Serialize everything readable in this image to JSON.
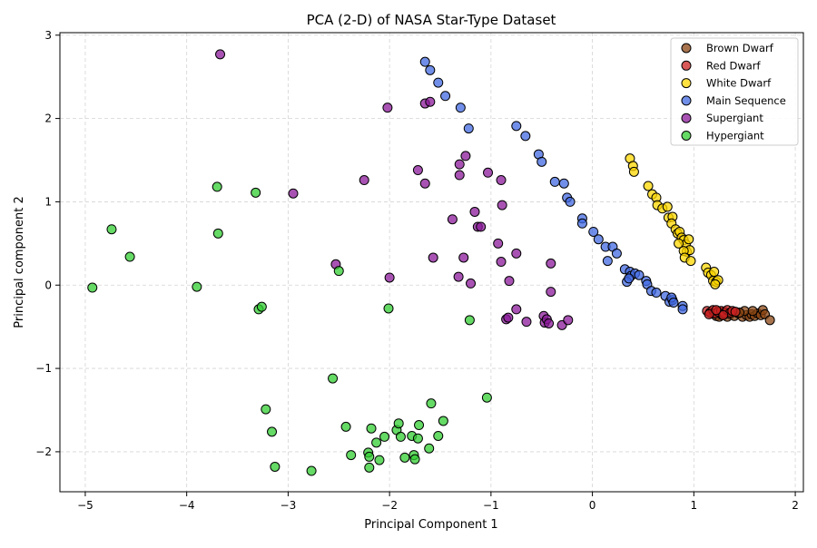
{
  "chart_data": {
    "type": "scatter",
    "title": "PCA (2-D) of NASA Star-Type Dataset",
    "xlabel": "Principal Component 1",
    "ylabel": "Principal component 2",
    "xlim": [
      -5.25,
      2.08
    ],
    "ylim": [
      -2.48,
      3.03
    ],
    "xticks": [
      -5,
      -4,
      -3,
      -2,
      -1,
      0,
      1,
      2
    ],
    "yticks": [
      -2,
      -1,
      0,
      1,
      2,
      3
    ],
    "grid": true,
    "legend_position": "top-right",
    "series": [
      {
        "name": "Brown Dwarf",
        "color": "#8B4513",
        "points": [
          [
            1.22,
            -0.37
          ],
          [
            1.25,
            -0.38
          ],
          [
            1.28,
            -0.36
          ],
          [
            1.33,
            -0.38
          ],
          [
            1.36,
            -0.35
          ],
          [
            1.4,
            -0.37
          ],
          [
            1.44,
            -0.34
          ],
          [
            1.48,
            -0.38
          ],
          [
            1.52,
            -0.36
          ],
          [
            1.55,
            -0.38
          ],
          [
            1.57,
            -0.35
          ],
          [
            1.6,
            -0.37
          ],
          [
            1.63,
            -0.34
          ],
          [
            1.66,
            -0.36
          ],
          [
            1.68,
            -0.3
          ],
          [
            1.7,
            -0.35
          ],
          [
            1.75,
            -0.42
          ],
          [
            1.5,
            -0.31
          ],
          [
            1.45,
            -0.33
          ],
          [
            1.3,
            -0.32
          ],
          [
            1.58,
            -0.31
          ],
          [
            1.18,
            -0.34
          ]
        ]
      },
      {
        "name": "Red Dwarf",
        "color": "#CC2222",
        "points": [
          [
            1.13,
            -0.31
          ],
          [
            1.16,
            -0.33
          ],
          [
            1.19,
            -0.3
          ],
          [
            1.21,
            -0.34
          ],
          [
            1.24,
            -0.32
          ],
          [
            1.27,
            -0.31
          ],
          [
            1.3,
            -0.34
          ],
          [
            1.33,
            -0.3
          ],
          [
            1.36,
            -0.33
          ],
          [
            1.38,
            -0.31
          ],
          [
            1.41,
            -0.32
          ],
          [
            1.29,
            -0.36
          ],
          [
            1.15,
            -0.35
          ],
          [
            1.22,
            -0.3
          ]
        ]
      },
      {
        "name": "White Dwarf",
        "color": "#FFD700",
        "points": [
          [
            0.37,
            1.52
          ],
          [
            0.4,
            1.43
          ],
          [
            0.41,
            1.36
          ],
          [
            0.55,
            1.19
          ],
          [
            0.59,
            1.09
          ],
          [
            0.63,
            1.05
          ],
          [
            0.64,
            0.96
          ],
          [
            0.69,
            0.92
          ],
          [
            0.74,
            0.94
          ],
          [
            0.75,
            0.81
          ],
          [
            0.79,
            0.82
          ],
          [
            0.78,
            0.74
          ],
          [
            0.82,
            0.67
          ],
          [
            0.84,
            0.62
          ],
          [
            0.86,
            0.64
          ],
          [
            0.88,
            0.57
          ],
          [
            0.9,
            0.54
          ],
          [
            0.92,
            0.49
          ],
          [
            0.95,
            0.55
          ],
          [
            0.85,
            0.5
          ],
          [
            0.93,
            0.4
          ],
          [
            0.96,
            0.42
          ],
          [
            0.9,
            0.41
          ],
          [
            0.91,
            0.33
          ],
          [
            0.97,
            0.29
          ],
          [
            1.12,
            0.21
          ],
          [
            1.14,
            0.15
          ],
          [
            1.17,
            0.12
          ],
          [
            1.2,
            0.16
          ],
          [
            1.19,
            0.05
          ],
          [
            1.22,
            0.04
          ],
          [
            1.24,
            0.06
          ],
          [
            1.21,
            0.01
          ]
        ]
      },
      {
        "name": "Main Sequence",
        "color": "#4169E1",
        "points": [
          [
            -1.65,
            2.68
          ],
          [
            -1.6,
            2.58
          ],
          [
            -1.52,
            2.43
          ],
          [
            -1.45,
            2.27
          ],
          [
            -1.3,
            2.13
          ],
          [
            -1.22,
            1.88
          ],
          [
            -0.75,
            1.91
          ],
          [
            -0.66,
            1.79
          ],
          [
            -0.53,
            1.57
          ],
          [
            -0.5,
            1.48
          ],
          [
            -0.37,
            1.24
          ],
          [
            -0.28,
            1.22
          ],
          [
            -0.25,
            1.05
          ],
          [
            -0.22,
            1.0
          ],
          [
            -0.1,
            0.8
          ],
          [
            -0.1,
            0.74
          ],
          [
            0.01,
            0.64
          ],
          [
            0.06,
            0.55
          ],
          [
            0.13,
            0.46
          ],
          [
            0.15,
            0.29
          ],
          [
            0.2,
            0.46
          ],
          [
            0.24,
            0.38
          ],
          [
            0.32,
            0.19
          ],
          [
            0.37,
            0.16
          ],
          [
            0.38,
            0.11
          ],
          [
            0.42,
            0.14
          ],
          [
            0.46,
            0.12
          ],
          [
            0.53,
            0.05
          ],
          [
            0.54,
            0.01
          ],
          [
            0.58,
            -0.07
          ],
          [
            0.63,
            -0.09
          ],
          [
            0.72,
            -0.13
          ],
          [
            0.76,
            -0.2
          ],
          [
            0.79,
            -0.18
          ],
          [
            0.78,
            -0.15
          ],
          [
            0.89,
            -0.25
          ],
          [
            0.89,
            -0.29
          ],
          [
            0.34,
            0.04
          ],
          [
            0.36,
            0.08
          ],
          [
            0.8,
            -0.21
          ]
        ]
      },
      {
        "name": "Supergiant",
        "color": "#8B1A9A",
        "points": [
          [
            -3.67,
            2.77
          ],
          [
            -2.02,
            2.13
          ],
          [
            -1.65,
            2.18
          ],
          [
            -1.6,
            2.2
          ],
          [
            -1.72,
            1.38
          ],
          [
            -1.65,
            1.22
          ],
          [
            -2.25,
            1.26
          ],
          [
            -2.95,
            1.1
          ],
          [
            -1.25,
            1.55
          ],
          [
            -1.31,
            1.45
          ],
          [
            -1.31,
            1.32
          ],
          [
            -1.03,
            1.35
          ],
          [
            -0.9,
            1.26
          ],
          [
            -0.89,
            0.96
          ],
          [
            -1.16,
            0.88
          ],
          [
            -1.38,
            0.79
          ],
          [
            -1.13,
            0.7
          ],
          [
            -1.1,
            0.7
          ],
          [
            -1.57,
            0.33
          ],
          [
            -1.27,
            0.33
          ],
          [
            -0.93,
            0.5
          ],
          [
            -0.75,
            0.38
          ],
          [
            -0.9,
            0.28
          ],
          [
            -0.41,
            0.26
          ],
          [
            -2.53,
            0.25
          ],
          [
            -2.0,
            0.09
          ],
          [
            -1.32,
            0.1
          ],
          [
            -1.2,
            0.02
          ],
          [
            -0.82,
            0.05
          ],
          [
            -0.41,
            -0.08
          ],
          [
            -0.75,
            -0.29
          ],
          [
            -0.85,
            -0.41
          ],
          [
            -0.83,
            -0.39
          ],
          [
            -0.65,
            -0.44
          ],
          [
            -0.48,
            -0.37
          ],
          [
            -0.47,
            -0.45
          ],
          [
            -0.45,
            -0.41
          ],
          [
            -0.43,
            -0.46
          ],
          [
            -0.3,
            -0.48
          ],
          [
            -0.24,
            -0.42
          ]
        ]
      },
      {
        "name": "Hypergiant",
        "color": "#32CD32",
        "points": [
          [
            -4.93,
            -0.03
          ],
          [
            -4.74,
            0.67
          ],
          [
            -4.56,
            0.34
          ],
          [
            -3.7,
            1.18
          ],
          [
            -3.69,
            0.62
          ],
          [
            -3.32,
            1.11
          ],
          [
            -3.9,
            -0.02
          ],
          [
            -3.29,
            -0.29
          ],
          [
            -3.26,
            -0.26
          ],
          [
            -2.5,
            0.17
          ],
          [
            -2.01,
            -0.28
          ],
          [
            -2.56,
            -1.12
          ],
          [
            -1.04,
            -1.35
          ],
          [
            -1.21,
            -0.42
          ],
          [
            -3.22,
            -1.49
          ],
          [
            -3.16,
            -1.76
          ],
          [
            -3.13,
            -2.18
          ],
          [
            -2.77,
            -2.23
          ],
          [
            -2.43,
            -1.7
          ],
          [
            -2.38,
            -2.04
          ],
          [
            -2.21,
            -2.01
          ],
          [
            -2.2,
            -2.06
          ],
          [
            -2.2,
            -2.19
          ],
          [
            -2.18,
            -1.72
          ],
          [
            -2.13,
            -1.89
          ],
          [
            -2.1,
            -2.1
          ],
          [
            -2.05,
            -1.82
          ],
          [
            -1.93,
            -1.74
          ],
          [
            -1.91,
            -1.66
          ],
          [
            -1.89,
            -1.82
          ],
          [
            -1.85,
            -2.07
          ],
          [
            -1.78,
            -1.81
          ],
          [
            -1.76,
            -2.04
          ],
          [
            -1.75,
            -2.09
          ],
          [
            -1.72,
            -1.84
          ],
          [
            -1.71,
            -1.68
          ],
          [
            -1.61,
            -1.96
          ],
          [
            -1.59,
            -1.42
          ],
          [
            -1.52,
            -1.81
          ],
          [
            -1.47,
            -1.63
          ]
        ]
      }
    ]
  }
}
